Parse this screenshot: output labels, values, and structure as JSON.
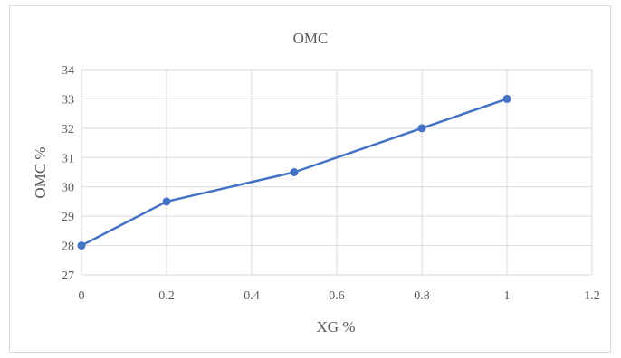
{
  "chart_data": {
    "type": "line",
    "title": "OMC",
    "xlabel": "XG %",
    "ylabel": "OMC %",
    "x_ticks": [
      "0",
      "0.2",
      "0.4",
      "0.6",
      "0.8",
      "1",
      "1.2"
    ],
    "y_ticks": [
      "27",
      "28",
      "29",
      "30",
      "31",
      "32",
      "33",
      "34"
    ],
    "xlim": [
      0,
      1.2
    ],
    "ylim": [
      27,
      34
    ],
    "grid": true,
    "series": [
      {
        "x": [
          0,
          0.2,
          0.5,
          0.8,
          1
        ],
        "y": [
          28,
          29.5,
          30.5,
          32,
          33
        ],
        "color": "#4472c4"
      }
    ]
  }
}
